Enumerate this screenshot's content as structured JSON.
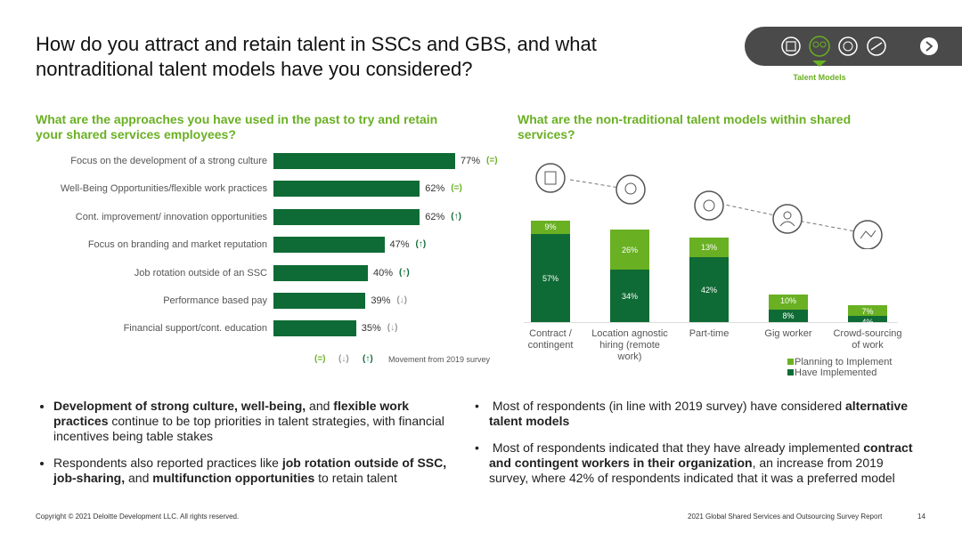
{
  "title": "How do you attract and retain talent in SSCs and GBS, and what nontraditional talent models have you considered?",
  "nav": {
    "label": "Talent Models"
  },
  "chart_data": [
    {
      "type": "hbar",
      "title": "What are the approaches you have used in the past to try and retain your shared services employees?",
      "categories": [
        "Focus on the development of a strong culture",
        "Well-Being Opportunities/flexible work practices",
        "Cont. improvement/ innovation opportunities",
        "Focus on branding and market reputation",
        "Job rotation outside of an SSC",
        "Performance based pay",
        "Financial support/cont. education"
      ],
      "values": [
        77,
        62,
        62,
        47,
        40,
        39,
        35
      ],
      "value_labels": [
        "77%",
        "62%",
        "62%",
        "47%",
        "40%",
        "39%",
        "35%"
      ],
      "color": "#0f6b35",
      "xlim": [
        0,
        100
      ],
      "movement": [
        "(=)",
        "(=)",
        "(↑)",
        "(↑)",
        "(↑)",
        "(↓)",
        "(↓)"
      ],
      "movement_legend": [
        {
          "label": "(=)",
          "color": "#6ab023"
        },
        {
          "label": "(↓)",
          "color": "#999999"
        },
        {
          "label": "(↑)",
          "color": "#0f6b35"
        }
      ],
      "movement_note": "Movement from 2019 survey"
    },
    {
      "type": "stacked-bar",
      "title": "What are the non-traditional talent models within shared services?",
      "categories": [
        "Contract / contingent",
        "Location agnostic hiring (remote work)",
        "Part-time",
        "Gig worker",
        "Crowd-sourcing of work"
      ],
      "series": [
        {
          "name": "Have Implemented",
          "color": "#0f6b35",
          "values": [
            57,
            34,
            42,
            8,
            4
          ],
          "value_labels": [
            "57%",
            "34%",
            "42%",
            "8%",
            "4%"
          ]
        },
        {
          "name": "Planning to Implement",
          "color": "#6ab023",
          "values": [
            9,
            26,
            13,
            10,
            7
          ],
          "value_labels": [
            "9%",
            "26%",
            "13%",
            "10%",
            "7%"
          ]
        }
      ],
      "ylim": [
        0,
        70
      ]
    }
  ],
  "bullets_left": [
    [
      {
        "text": "Development of strong culture, well-being,",
        "bold": true
      },
      {
        "text": " and ",
        "bold": false
      },
      {
        "text": "flexible work practices",
        "bold": true
      },
      {
        "text": " continue to be top priorities in talent strategies, with financial incentives being table stakes",
        "bold": false
      }
    ],
    [
      {
        "text": "Respondents also reported practices like ",
        "bold": false
      },
      {
        "text": "job rotation outside of SSC, job-sharing,",
        "bold": true
      },
      {
        "text": " and ",
        "bold": false
      },
      {
        "text": "multifunction opportunities",
        "bold": true
      },
      {
        "text": " to retain talent",
        "bold": false
      }
    ]
  ],
  "bullets_right": [
    [
      {
        "text": " Most of respondents (in line with 2019 survey) have considered ",
        "bold": false
      },
      {
        "text": "alternative talent models",
        "bold": true
      }
    ],
    [
      {
        "text": " Most of respondents indicated that they have already implemented ",
        "bold": false
      },
      {
        "text": "contract and contingent workers in their organization",
        "bold": true
      },
      {
        "text": ", an increase from 2019 survey, where 42%  of respondents indicated that it was a preferred model",
        "bold": false
      }
    ]
  ],
  "footer": {
    "copyright": "Copyright © 2021 Deloitte Development LLC. All rights reserved.",
    "report": "2021 Global Shared Services and Outsourcing Survey Report",
    "page": "14"
  }
}
